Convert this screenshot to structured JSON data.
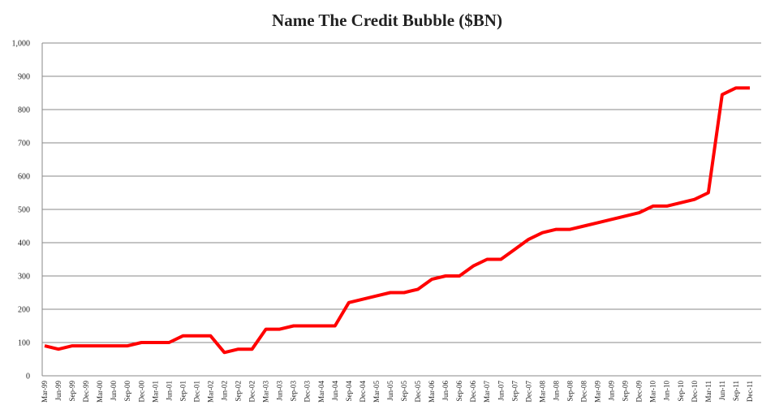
{
  "chart_data": {
    "type": "line",
    "title": "Name The Credit Bubble ($BN)",
    "categories": [
      "Mar-99",
      "Jun-99",
      "Sep-99",
      "Dec-99",
      "Mar-00",
      "Jun-00",
      "Sep-00",
      "Dec-00",
      "Mar-01",
      "Jun-01",
      "Sep-01",
      "Dec-01",
      "Mar-02",
      "Jun-02",
      "Sep-02",
      "Dec-02",
      "Mar-03",
      "Jun-03",
      "Sep-03",
      "Dec-03",
      "Mar-04",
      "Jun-04",
      "Sep-04",
      "Dec-04",
      "Mar-05",
      "Jun-05",
      "Sep-05",
      "Dec-05",
      "Mar-06",
      "Jun-06",
      "Sep-06",
      "Dec-06",
      "Mar-07",
      "Jun-07",
      "Sep-07",
      "Dec-07",
      "Mar-08",
      "Jun-08",
      "Sep-08",
      "Dec-08",
      "Mar-09",
      "Jun-09",
      "Sep-09",
      "Dec-09",
      "Mar-10",
      "Jun-10",
      "Sep-10",
      "Dec-10",
      "Mar-11",
      "Jun-11",
      "Sep-11",
      "Dec-11"
    ],
    "values": [
      90,
      80,
      90,
      90,
      90,
      90,
      90,
      100,
      100,
      100,
      120,
      120,
      120,
      70,
      80,
      80,
      140,
      140,
      150,
      150,
      150,
      150,
      220,
      230,
      240,
      250,
      250,
      260,
      290,
      300,
      300,
      330,
      350,
      350,
      380,
      410,
      430,
      440,
      440,
      450,
      460,
      470,
      480,
      490,
      510,
      510,
      520,
      530,
      550,
      845,
      865,
      865
    ],
    "color": "#ff0000",
    "ylim": [
      0,
      1000
    ],
    "yticks": [
      0,
      100,
      200,
      300,
      400,
      500,
      600,
      700,
      800,
      900,
      {
        "value": 1000,
        "label": "1,000"
      }
    ],
    "grid": true
  }
}
